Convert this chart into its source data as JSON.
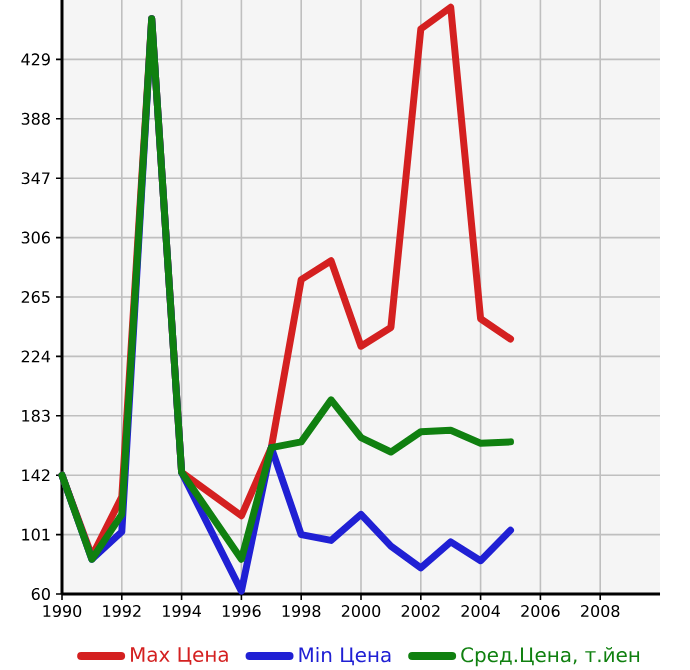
{
  "chart_data": {
    "type": "line",
    "x": [
      1990,
      1991,
      1992,
      1993,
      1994,
      1996,
      1997,
      1998,
      1999,
      2000,
      2001,
      2002,
      2003,
      2004,
      2005
    ],
    "series": [
      {
        "name": "Max Цена",
        "color": "#d42020",
        "values": [
          142,
          86,
          127,
          457,
          144,
          114,
          161,
          277,
          290,
          231,
          244,
          450,
          465,
          250,
          236
        ]
      },
      {
        "name": "Min Цена",
        "color": "#2020d4",
        "values": [
          142,
          84,
          103,
          457,
          144,
          62,
          161,
          101,
          97,
          115,
          93,
          78,
          96,
          83,
          104
        ]
      },
      {
        "name": "Сред.Цена, т.йен",
        "color": "#108010",
        "values": [
          142,
          84,
          115,
          457,
          144,
          84,
          161,
          165,
          194,
          168,
          158,
          172,
          173,
          164,
          165
        ]
      }
    ],
    "xlim": [
      1990,
      2010
    ],
    "ylim": [
      60,
      470
    ],
    "xticks": [
      1990,
      1992,
      1994,
      1996,
      1998,
      2000,
      2002,
      2004,
      2006,
      2008
    ],
    "yticks": [
      60,
      101,
      142,
      183,
      224,
      265,
      306,
      347,
      388,
      429
    ],
    "grid": true,
    "legend": "bottom",
    "marker": "none",
    "line_style": "solid"
  }
}
